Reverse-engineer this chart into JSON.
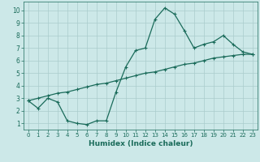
{
  "xlabel": "Humidex (Indice chaleur)",
  "ylabel": "",
  "bg_color": "#cce8e8",
  "grid_color": "#aacccc",
  "line_color": "#1a6b5a",
  "x_wavy": [
    0,
    1,
    2,
    3,
    4,
    5,
    6,
    7,
    8,
    9,
    10,
    11,
    12,
    13,
    14,
    15,
    16,
    17,
    18,
    19,
    20,
    21,
    22,
    23
  ],
  "y_wavy": [
    2.8,
    2.2,
    3.0,
    2.7,
    1.2,
    1.0,
    0.9,
    1.2,
    1.2,
    3.5,
    5.5,
    6.8,
    7.0,
    9.3,
    10.2,
    9.7,
    8.4,
    7.0,
    7.3,
    7.5,
    8.0,
    7.3,
    6.7,
    6.5
  ],
  "x_straight": [
    0,
    1,
    2,
    3,
    4,
    5,
    6,
    7,
    8,
    9,
    10,
    11,
    12,
    13,
    14,
    15,
    16,
    17,
    18,
    19,
    20,
    21,
    22,
    23
  ],
  "y_straight": [
    2.8,
    3.0,
    3.2,
    3.4,
    3.5,
    3.7,
    3.9,
    4.1,
    4.2,
    4.4,
    4.6,
    4.8,
    5.0,
    5.1,
    5.3,
    5.5,
    5.7,
    5.8,
    6.0,
    6.2,
    6.3,
    6.4,
    6.5,
    6.5
  ],
  "xlim": [
    -0.5,
    23.5
  ],
  "ylim": [
    0.5,
    10.7
  ],
  "yticks": [
    1,
    2,
    3,
    4,
    5,
    6,
    7,
    8,
    9,
    10
  ],
  "xticks": [
    0,
    1,
    2,
    3,
    4,
    5,
    6,
    7,
    8,
    9,
    10,
    11,
    12,
    13,
    14,
    15,
    16,
    17,
    18,
    19,
    20,
    21,
    22,
    23
  ],
  "marker": "+",
  "markersize": 3.5,
  "linewidth": 0.9,
  "tick_fontsize": 5.5,
  "xlabel_fontsize": 6.5
}
